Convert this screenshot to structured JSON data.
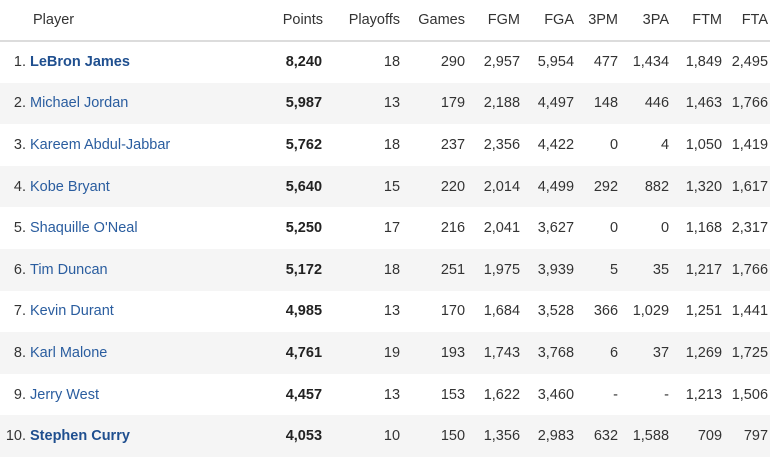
{
  "table": {
    "headers": {
      "player": "Player",
      "points": "Points",
      "playoffs": "Playoffs",
      "games": "Games",
      "fgm": "FGM",
      "fga": "FGA",
      "tpm": "3PM",
      "tpa": "3PA",
      "ftm": "FTM",
      "fta": "FTA"
    },
    "rows": [
      {
        "rank": "1.",
        "player": "LeBron James",
        "points": "8,240",
        "playoffs": "18",
        "games": "290",
        "fgm": "2,957",
        "fga": "5,954",
        "tpm": "477",
        "tpa": "1,434",
        "ftm": "1,849",
        "fta": "2,495"
      },
      {
        "rank": "2.",
        "player": "Michael Jordan",
        "points": "5,987",
        "playoffs": "13",
        "games": "179",
        "fgm": "2,188",
        "fga": "4,497",
        "tpm": "148",
        "tpa": "446",
        "ftm": "1,463",
        "fta": "1,766"
      },
      {
        "rank": "3.",
        "player": "Kareem Abdul-Jabbar",
        "points": "5,762",
        "playoffs": "18",
        "games": "237",
        "fgm": "2,356",
        "fga": "4,422",
        "tpm": "0",
        "tpa": "4",
        "ftm": "1,050",
        "fta": "1,419"
      },
      {
        "rank": "4.",
        "player": "Kobe Bryant",
        "points": "5,640",
        "playoffs": "15",
        "games": "220",
        "fgm": "2,014",
        "fga": "4,499",
        "tpm": "292",
        "tpa": "882",
        "ftm": "1,320",
        "fta": "1,617"
      },
      {
        "rank": "5.",
        "player": "Shaquille O'Neal",
        "points": "5,250",
        "playoffs": "17",
        "games": "216",
        "fgm": "2,041",
        "fga": "3,627",
        "tpm": "0",
        "tpa": "0",
        "ftm": "1,168",
        "fta": "2,317"
      },
      {
        "rank": "6.",
        "player": "Tim Duncan",
        "points": "5,172",
        "playoffs": "18",
        "games": "251",
        "fgm": "1,975",
        "fga": "3,939",
        "tpm": "5",
        "tpa": "35",
        "ftm": "1,217",
        "fta": "1,766"
      },
      {
        "rank": "7.",
        "player": "Kevin Durant",
        "points": "4,985",
        "playoffs": "13",
        "games": "170",
        "fgm": "1,684",
        "fga": "3,528",
        "tpm": "366",
        "tpa": "1,029",
        "ftm": "1,251",
        "fta": "1,441"
      },
      {
        "rank": "8.",
        "player": "Karl Malone",
        "points": "4,761",
        "playoffs": "19",
        "games": "193",
        "fgm": "1,743",
        "fga": "3,768",
        "tpm": "6",
        "tpa": "37",
        "ftm": "1,269",
        "fta": "1,725"
      },
      {
        "rank": "9.",
        "player": "Jerry West",
        "points": "4,457",
        "playoffs": "13",
        "games": "153",
        "fgm": "1,622",
        "fga": "3,460",
        "tpm": "-",
        "tpa": "-",
        "ftm": "1,213",
        "fta": "1,506"
      },
      {
        "rank": "10.",
        "player": "Stephen Curry",
        "points": "4,053",
        "playoffs": "10",
        "games": "150",
        "fgm": "1,356",
        "fga": "2,983",
        "tpm": "632",
        "tpa": "1,588",
        "ftm": "709",
        "fta": "797"
      }
    ],
    "bold_players": [
      "LeBron James",
      "Stephen Curry"
    ]
  },
  "colors": {
    "link": "#2a5d9f",
    "zebra": "#f5f5f5",
    "header_border": "#dcdcdc"
  }
}
